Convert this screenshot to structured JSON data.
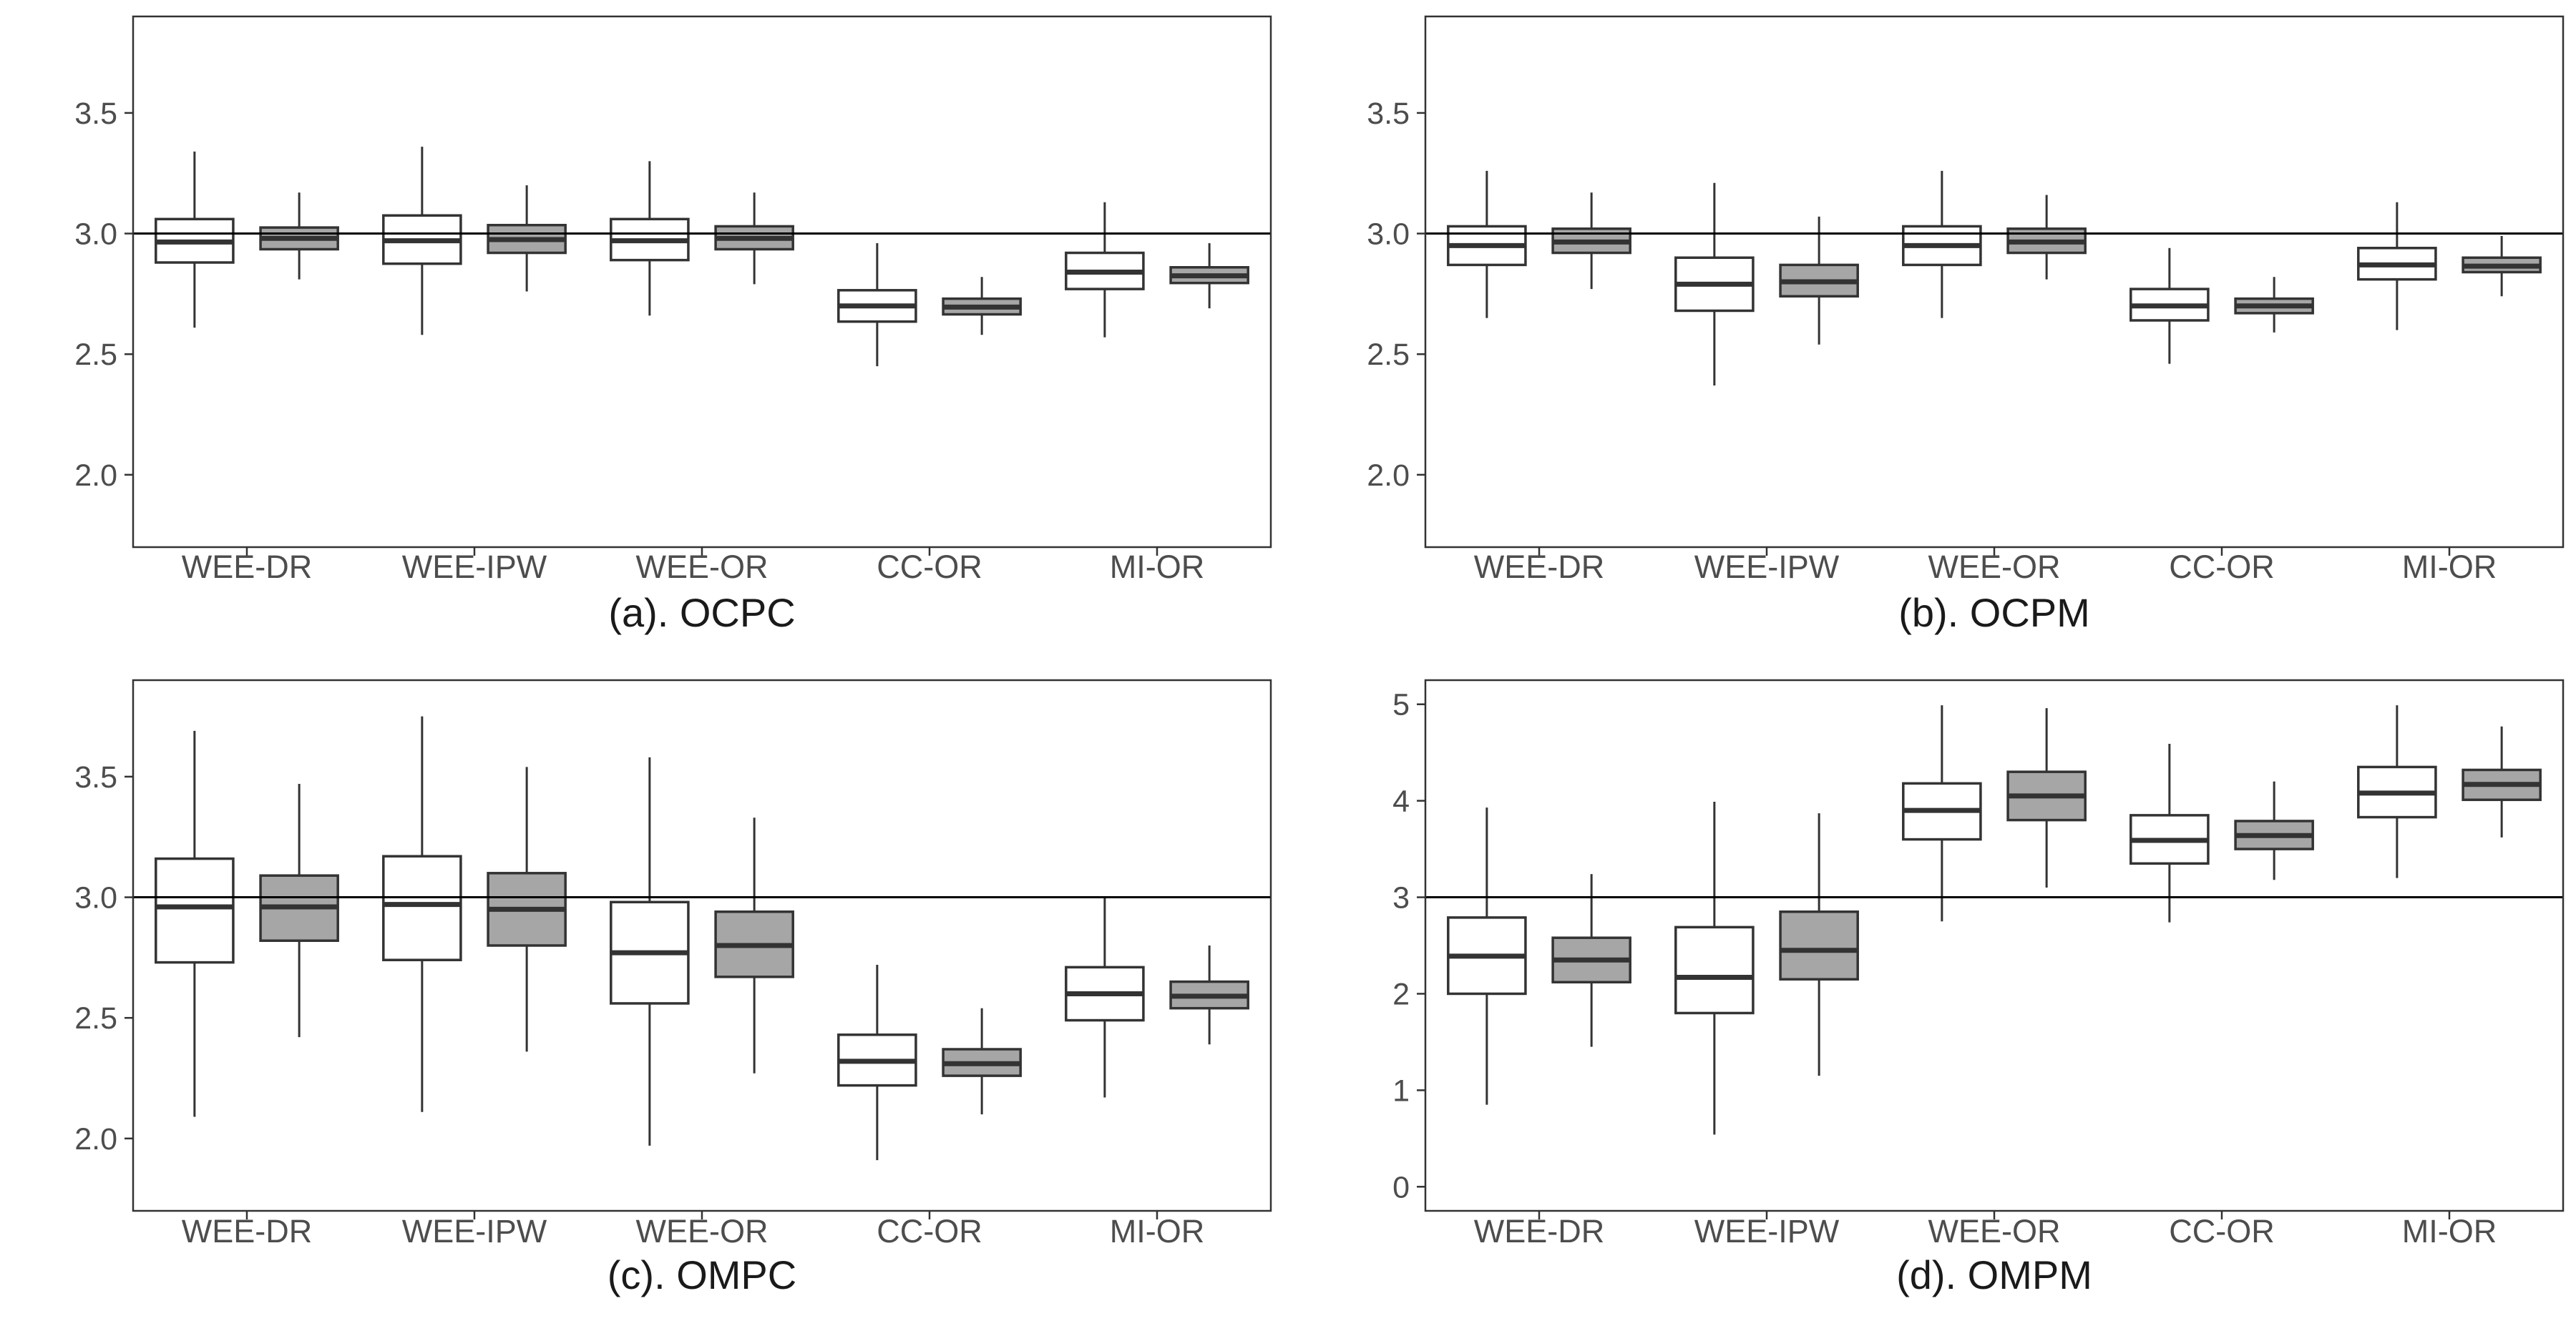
{
  "chart_data": [
    {
      "type": "boxplot",
      "caption": "(a). OCPC",
      "categories": [
        "WEE-DR",
        "WEE-IPW",
        "WEE-OR",
        "CC-OR",
        "MI-OR"
      ],
      "ylim": [
        1.7,
        3.9
      ],
      "yticks": [
        2.0,
        2.5,
        3.0,
        3.5
      ],
      "ytick_labels": [
        "2.0",
        "2.5",
        "3.0",
        "3.5"
      ],
      "reference_line": 3.0,
      "series": [
        {
          "name": "white",
          "fill": "#ffffff",
          "boxes": [
            {
              "min": 2.61,
              "q1": 2.88,
              "median": 2.965,
              "q3": 3.06,
              "max": 3.34
            },
            {
              "min": 2.58,
              "q1": 2.875,
              "median": 2.97,
              "q3": 3.075,
              "max": 3.36
            },
            {
              "min": 2.66,
              "q1": 2.89,
              "median": 2.97,
              "q3": 3.06,
              "max": 3.3
            },
            {
              "min": 2.45,
              "q1": 2.635,
              "median": 2.7,
              "q3": 2.765,
              "max": 2.96
            },
            {
              "min": 2.57,
              "q1": 2.77,
              "median": 2.84,
              "q3": 2.92,
              "max": 3.13
            }
          ]
        },
        {
          "name": "grey",
          "fill": "#a6a6a6",
          "boxes": [
            {
              "min": 2.81,
              "q1": 2.935,
              "median": 2.98,
              "q3": 3.025,
              "max": 3.17
            },
            {
              "min": 2.76,
              "q1": 2.92,
              "median": 2.975,
              "q3": 3.035,
              "max": 3.2
            },
            {
              "min": 2.79,
              "q1": 2.935,
              "median": 2.98,
              "q3": 3.03,
              "max": 3.17
            },
            {
              "min": 2.58,
              "q1": 2.665,
              "median": 2.695,
              "q3": 2.73,
              "max": 2.82
            },
            {
              "min": 2.69,
              "q1": 2.795,
              "median": 2.825,
              "q3": 2.86,
              "max": 2.96
            }
          ]
        }
      ]
    },
    {
      "type": "boxplot",
      "caption": "(b). OCPM",
      "categories": [
        "WEE-DR",
        "WEE-IPW",
        "WEE-OR",
        "CC-OR",
        "MI-OR"
      ],
      "ylim": [
        1.7,
        3.9
      ],
      "yticks": [
        2.0,
        2.5,
        3.0,
        3.5
      ],
      "ytick_labels": [
        "2.0",
        "2.5",
        "3.0",
        "3.5"
      ],
      "reference_line": 3.0,
      "series": [
        {
          "name": "white",
          "fill": "#ffffff",
          "boxes": [
            {
              "min": 2.65,
              "q1": 2.87,
              "median": 2.95,
              "q3": 3.03,
              "max": 3.26
            },
            {
              "min": 2.37,
              "q1": 2.68,
              "median": 2.79,
              "q3": 2.9,
              "max": 3.21
            },
            {
              "min": 2.65,
              "q1": 2.87,
              "median": 2.95,
              "q3": 3.03,
              "max": 3.26
            },
            {
              "min": 2.46,
              "q1": 2.64,
              "median": 2.7,
              "q3": 2.77,
              "max": 2.94
            },
            {
              "min": 2.6,
              "q1": 2.81,
              "median": 2.87,
              "q3": 2.94,
              "max": 3.13
            }
          ]
        },
        {
          "name": "grey",
          "fill": "#a6a6a6",
          "boxes": [
            {
              "min": 2.77,
              "q1": 2.92,
              "median": 2.965,
              "q3": 3.02,
              "max": 3.17
            },
            {
              "min": 2.54,
              "q1": 2.74,
              "median": 2.8,
              "q3": 2.87,
              "max": 3.07
            },
            {
              "min": 2.81,
              "q1": 2.92,
              "median": 2.965,
              "q3": 3.02,
              "max": 3.16
            },
            {
              "min": 2.59,
              "q1": 2.67,
              "median": 2.7,
              "q3": 2.73,
              "max": 2.82
            },
            {
              "min": 2.74,
              "q1": 2.84,
              "median": 2.865,
              "q3": 2.9,
              "max": 2.99
            }
          ]
        }
      ]
    },
    {
      "type": "boxplot",
      "caption": "(c). OMPC",
      "categories": [
        "WEE-DR",
        "WEE-IPW",
        "WEE-OR",
        "CC-OR",
        "MI-OR"
      ],
      "ylim": [
        1.7,
        3.9
      ],
      "yticks": [
        2.0,
        2.5,
        3.0,
        3.5
      ],
      "ytick_labels": [
        "2.0",
        "2.5",
        "3.0",
        "3.5"
      ],
      "reference_line": 3.0,
      "series": [
        {
          "name": "white",
          "fill": "#ffffff",
          "boxes": [
            {
              "min": 2.09,
              "q1": 2.73,
              "median": 2.96,
              "q3": 3.16,
              "max": 3.69
            },
            {
              "min": 2.11,
              "q1": 2.74,
              "median": 2.97,
              "q3": 3.17,
              "max": 3.75
            },
            {
              "min": 1.97,
              "q1": 2.56,
              "median": 2.77,
              "q3": 2.98,
              "max": 3.58
            },
            {
              "min": 1.91,
              "q1": 2.22,
              "median": 2.32,
              "q3": 2.43,
              "max": 2.72
            },
            {
              "min": 2.17,
              "q1": 2.49,
              "median": 2.6,
              "q3": 2.71,
              "max": 3.0
            }
          ]
        },
        {
          "name": "grey",
          "fill": "#a6a6a6",
          "boxes": [
            {
              "min": 2.42,
              "q1": 2.82,
              "median": 2.96,
              "q3": 3.09,
              "max": 3.47
            },
            {
              "min": 2.36,
              "q1": 2.8,
              "median": 2.95,
              "q3": 3.1,
              "max": 3.54
            },
            {
              "min": 2.27,
              "q1": 2.67,
              "median": 2.8,
              "q3": 2.94,
              "max": 3.33
            },
            {
              "min": 2.1,
              "q1": 2.26,
              "median": 2.31,
              "q3": 2.37,
              "max": 2.54
            },
            {
              "min": 2.39,
              "q1": 2.54,
              "median": 2.59,
              "q3": 2.65,
              "max": 2.8
            }
          ]
        }
      ]
    },
    {
      "type": "boxplot",
      "caption": "(d). OMPM",
      "categories": [
        "WEE-DR",
        "WEE-IPW",
        "WEE-OR",
        "CC-OR",
        "MI-OR"
      ],
      "ylim": [
        -0.25,
        5.25
      ],
      "yticks": [
        0,
        1,
        2,
        3,
        4,
        5
      ],
      "ytick_labels": [
        "0",
        "1",
        "2",
        "3",
        "4",
        "5"
      ],
      "reference_line": 3.0,
      "series": [
        {
          "name": "white",
          "fill": "#ffffff",
          "boxes": [
            {
              "min": 0.85,
              "q1": 2.0,
              "median": 2.39,
              "q3": 2.79,
              "max": 3.93
            },
            {
              "min": 0.54,
              "q1": 1.8,
              "median": 2.17,
              "q3": 2.69,
              "max": 3.99
            },
            {
              "min": 2.75,
              "q1": 3.6,
              "median": 3.9,
              "q3": 4.18,
              "max": 4.99
            },
            {
              "min": 2.74,
              "q1": 3.35,
              "median": 3.59,
              "q3": 3.85,
              "max": 4.59
            },
            {
              "min": 3.2,
              "q1": 3.83,
              "median": 4.08,
              "q3": 4.35,
              "max": 4.99
            }
          ]
        },
        {
          "name": "grey",
          "fill": "#a6a6a6",
          "boxes": [
            {
              "min": 1.45,
              "q1": 2.12,
              "median": 2.35,
              "q3": 2.58,
              "max": 3.24
            },
            {
              "min": 1.15,
              "q1": 2.15,
              "median": 2.45,
              "q3": 2.85,
              "max": 3.87
            },
            {
              "min": 3.1,
              "q1": 3.8,
              "median": 4.05,
              "q3": 4.3,
              "max": 4.96
            },
            {
              "min": 3.18,
              "q1": 3.5,
              "median": 3.64,
              "q3": 3.79,
              "max": 4.2
            },
            {
              "min": 3.62,
              "q1": 4.01,
              "median": 4.17,
              "q3": 4.32,
              "max": 4.77
            }
          ]
        }
      ]
    }
  ]
}
